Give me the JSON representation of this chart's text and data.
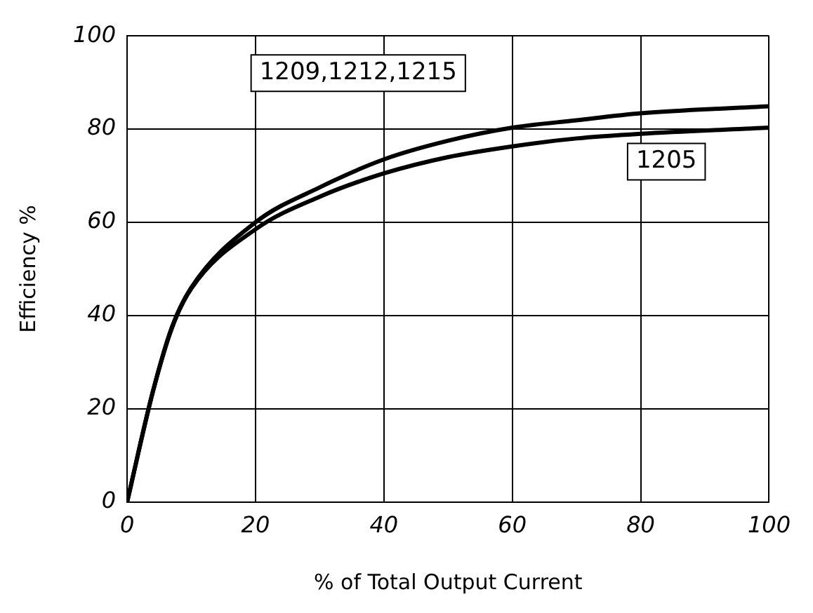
{
  "chart_data": {
    "type": "line",
    "xlabel": "% of Total Output Current",
    "ylabel": "Efficiency %",
    "xlim": [
      0,
      100
    ],
    "ylim": [
      0,
      100
    ],
    "xticks": [
      0,
      20,
      40,
      60,
      80,
      100
    ],
    "yticks": [
      0,
      20,
      40,
      60,
      80,
      100
    ],
    "grid": true,
    "legend": false,
    "marker": "none",
    "line_style": "solid",
    "x": [
      0,
      4,
      7,
      10,
      20,
      30,
      40,
      50,
      60,
      70,
      80,
      100
    ],
    "series": [
      {
        "name": "1209,1212,1215",
        "color": "#000000",
        "values": [
          0,
          23.6,
          37.6,
          46,
          60,
          67.5,
          73.5,
          77.5,
          80.3,
          81.9,
          83.4,
          84.9
        ]
      },
      {
        "name": "1205",
        "color": "#000000",
        "values": [
          0,
          23.6,
          37.4,
          45.8,
          58.5,
          65.5,
          70.5,
          74,
          76.3,
          78,
          79,
          80.3
        ]
      }
    ]
  }
}
